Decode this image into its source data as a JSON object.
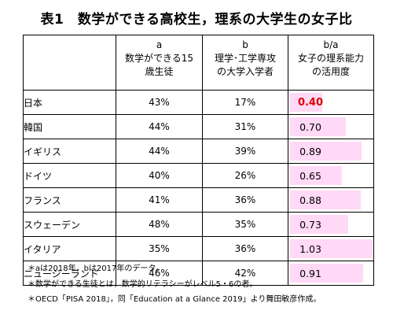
{
  "title": "表1　数学ができる高校生，理系の大学生の女子比",
  "headers": {
    "a": {
      "code": "a",
      "line1": "数学ができる15",
      "line2": "歳生徒"
    },
    "b": {
      "code": "b",
      "line1": "理学･工学専攻",
      "line2": "の大学入学者"
    },
    "ratio": {
      "code": "b/a",
      "line1": "女子の理系能力",
      "line2": "の活用度"
    }
  },
  "chart_data": {
    "type": "table",
    "title": "表1　数学ができる高校生，理系の大学生の女子比",
    "columns": [
      "a",
      "b",
      "b/a"
    ],
    "rows": [
      {
        "country": "日本",
        "a": "43%",
        "b": "17%",
        "ratio": "0.40",
        "ratio_value": 0.4,
        "highlight": true
      },
      {
        "country": "韓国",
        "a": "44%",
        "b": "31%",
        "ratio": "0.70",
        "ratio_value": 0.7
      },
      {
        "country": "イギリス",
        "a": "44%",
        "b": "39%",
        "ratio": "0.89",
        "ratio_value": 0.89
      },
      {
        "country": "ドイツ",
        "a": "40%",
        "b": "26%",
        "ratio": "0.65",
        "ratio_value": 0.65
      },
      {
        "country": "フランス",
        "a": "41%",
        "b": "36%",
        "ratio": "0.88",
        "ratio_value": 0.88
      },
      {
        "country": "スウェーデン",
        "a": "48%",
        "b": "35%",
        "ratio": "0.73",
        "ratio_value": 0.73
      },
      {
        "country": "イタリア",
        "a": "35%",
        "b": "36%",
        "ratio": "1.03",
        "ratio_value": 1.03
      },
      {
        "country": "ニュージーランド",
        "a": "46%",
        "b": "42%",
        "ratio": "0.91",
        "ratio_value": 0.91
      }
    ],
    "bar_color": "#ffd9f6",
    "highlight_color": "#e00000"
  },
  "notes": [
    "＊aは2018年，bは2017年のデータ。",
    "＊数学ができる生徒とは，数学的リテラシーがレベル5・6の者。",
    "＊OECD「PISA 2018」，同「Education at a Glance 2019」より舞田敏彦作成。"
  ]
}
